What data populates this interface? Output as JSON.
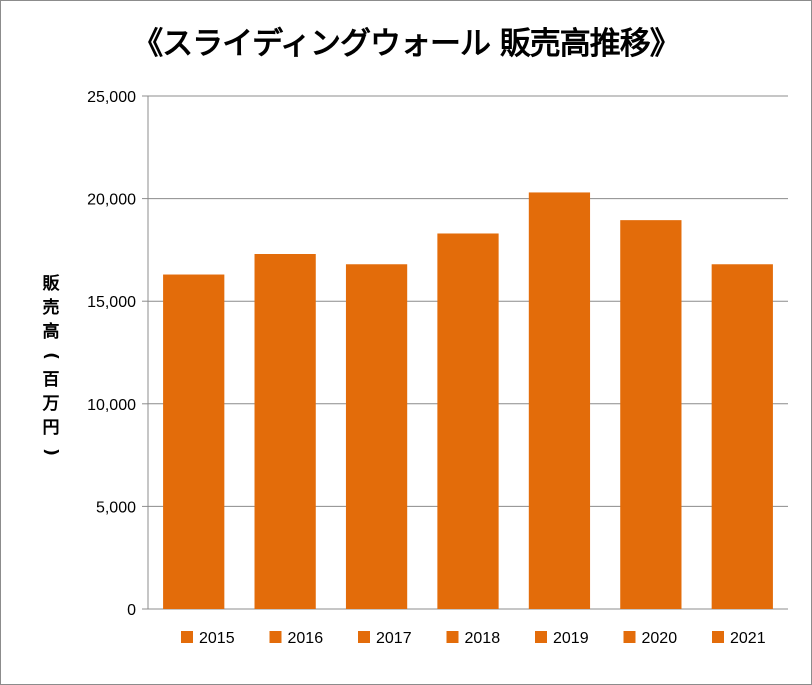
{
  "chart_data": {
    "type": "bar",
    "title": "《スライディングウォール 販売高推移》",
    "ylabel": "販売高(百万円)",
    "xlabel": "",
    "categories": [
      "2015",
      "2016",
      "2017",
      "2018",
      "2019",
      "2020",
      "2021"
    ],
    "values": [
      16300,
      17300,
      16800,
      18300,
      20300,
      18950,
      16800
    ],
    "ylim": [
      0,
      25000
    ],
    "yticks": [
      "0",
      "5,000",
      "10,000",
      "15,000",
      "20,000",
      "25,000"
    ],
    "ytick_values": [
      0,
      5000,
      10000,
      15000,
      20000,
      25000
    ],
    "grid": true,
    "legend": "bottom",
    "bar_color": "#E36C0A"
  }
}
